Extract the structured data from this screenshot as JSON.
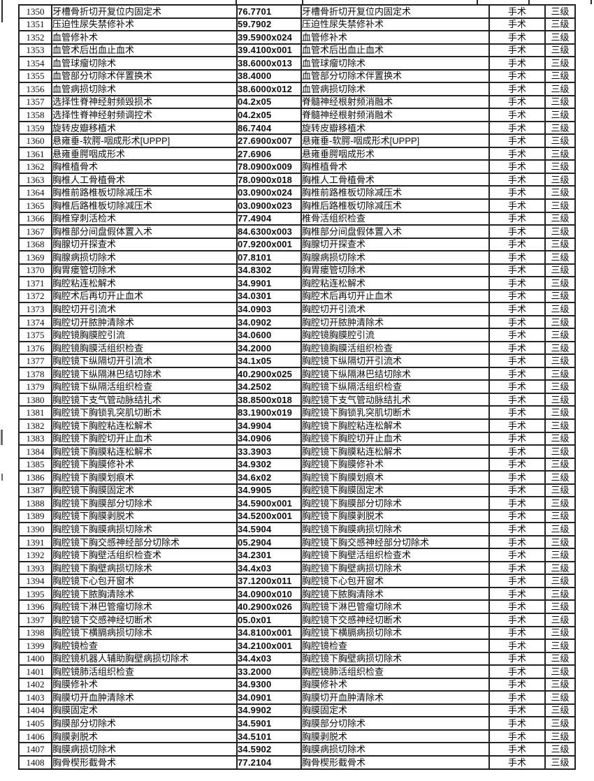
{
  "page": {
    "background": "#ffffff",
    "border_color": "#242424",
    "text_color": "#0c0c0c",
    "category_value": "手术",
    "grade_value": "三级"
  },
  "table": {
    "first_row_number": "1350",
    "last_row_number": "1408",
    "rows": [
      [
        "1350",
        "牙槽骨折切开复位内固定术",
        "76.7701",
        "牙槽骨折切开复位内固定术",
        "手术",
        "三级"
      ],
      [
        "1351",
        "压迫性尿失禁修补术",
        "59.7902",
        "压迫性尿失禁修补术",
        "手术",
        "三级"
      ],
      [
        "1352",
        "血管修补术",
        "39.5900x024",
        "血管修补术",
        "手术",
        "三级"
      ],
      [
        "1353",
        "血管术后出血止血术",
        "39.4100x001",
        "血管术后出血止血术",
        "手术",
        "三级"
      ],
      [
        "1354",
        "血管球瘤切除术",
        "38.6000x013",
        "血管球瘤切除术",
        "手术",
        "三级"
      ],
      [
        "1355",
        "血管部分切除术伴置换术",
        "38.4000",
        "血管部分切除术伴置换术",
        "手术",
        "三级"
      ],
      [
        "1356",
        "血管病损切除术",
        "38.6000x012",
        "血管病损切除术",
        "手术",
        "三级"
      ],
      [
        "1357",
        "选择性脊神经射频毁损术",
        "04.2x05",
        "脊髓神经根射频消融术",
        "手术",
        "三级"
      ],
      [
        "1358",
        "选择性脊神经射频调控术",
        "04.2x05",
        "脊髓神经根射频消融术",
        "手术",
        "三级"
      ],
      [
        "1359",
        "旋转皮瓣移植术",
        "86.7404",
        "旋转皮瓣移植术",
        "手术",
        "三级"
      ],
      [
        "1360",
        "悬雍垂-软腭-咽成形术[UPPP]",
        "27.6900x007",
        "悬雍垂-软腭-咽成形术[UPPP]",
        "手术",
        "三级"
      ],
      [
        "1361",
        "悬雍垂腭咽成形术",
        "27.6906",
        "悬雍垂腭咽成形术",
        "手术",
        "三级"
      ],
      [
        "1362",
        "胸椎植骨术",
        "78.0900x009",
        "胸椎植骨术",
        "手术",
        "三级"
      ],
      [
        "1363",
        "胸椎人工骨植骨术",
        "78.0900x018",
        "胸椎人工骨植骨术",
        "手术",
        "三级"
      ],
      [
        "1364",
        "胸椎前路椎板切除减压术",
        "03.0900x024",
        "胸椎前路椎板切除减压术",
        "手术",
        "三级"
      ],
      [
        "1365",
        "胸椎后路椎板切除减压术",
        "03.0900x023",
        "胸椎后路椎板切除减压术",
        "手术",
        "三级"
      ],
      [
        "1366",
        "胸椎穿刺活检术",
        "77.4904",
        "椎骨活组织检查",
        "手术",
        "三级"
      ],
      [
        "1367",
        "胸椎部分间盘假体置入术",
        "84.6300x003",
        "胸椎部分间盘假体置入术",
        "手术",
        "三级"
      ],
      [
        "1368",
        "胸腺切开探查术",
        "07.9200x001",
        "胸腺切开探查术",
        "手术",
        "三级"
      ],
      [
        "1369",
        "胸腺病损切除术",
        "07.8101",
        "胸腺病损切除术",
        "手术",
        "三级"
      ],
      [
        "1370",
        "胸胃瘘管切除术",
        "34.8302",
        "胸胃瘘管切除术",
        "手术",
        "三级"
      ],
      [
        "1371",
        "胸腔粘连松解术",
        "34.9901",
        "胸腔粘连松解术",
        "手术",
        "三级"
      ],
      [
        "1372",
        "胸腔术后再切开止血术",
        "34.0301",
        "胸腔术后再切开止血术",
        "手术",
        "三级"
      ],
      [
        "1373",
        "胸腔切开引流术",
        "34.0903",
        "胸腔切开引流术",
        "手术",
        "三级"
      ],
      [
        "1374",
        "胸腔切开脓肿清除术",
        "34.0902",
        "胸腔切开脓肿清除术",
        "手术",
        "三级"
      ],
      [
        "1375",
        "胸腔镜胸膜腔引流",
        "34.0600",
        "胸腔镜胸膜腔引流",
        "手术",
        "三级"
      ],
      [
        "1376",
        "胸腔镜胸膜活组织检查",
        "34.2000",
        "胸腔镜胸膜活组织检查",
        "手术",
        "三级"
      ],
      [
        "1377",
        "胸腔镜下纵隔切开引流术",
        "34.1x05",
        "胸腔镜下纵隔切开引流术",
        "手术",
        "三级"
      ],
      [
        "1378",
        "胸腔镜下纵隔淋巴结切除术",
        "40.2900x025",
        "胸腔镜下纵隔淋巴结切除术",
        "手术",
        "三级"
      ],
      [
        "1379",
        "胸腔镜下纵隔活组织检查",
        "34.2502",
        "胸腔镜下纵隔活组织检查",
        "手术",
        "三级"
      ],
      [
        "1380",
        "胸腔镜下支气管动脉结扎术",
        "38.8500x018",
        "胸腔镜下支气管动脉结扎术",
        "手术",
        "三级"
      ],
      [
        "1381",
        "胸腔镜下胸锁乳突肌切断术",
        "83.1900x019",
        "胸腔镜下胸锁乳突肌切断术",
        "手术",
        "三级"
      ],
      [
        "1382",
        "胸腔镜下胸腔粘连松解术",
        "34.9904",
        "胸腔镜下胸腔粘连松解术",
        "手术",
        "三级"
      ],
      [
        "1383",
        "胸腔镜下胸腔切开止血术",
        "34.0906",
        "胸腔镜下胸腔切开止血术",
        "手术",
        "三级"
      ],
      [
        "1384",
        "胸腔镜下胸膜粘连松解术",
        "33.3903",
        "胸腔镜下胸膜粘连松解术",
        "手术",
        "三级"
      ],
      [
        "1385",
        "胸腔镜下胸膜修补术",
        "34.9302",
        "胸腔镜下胸膜修补术",
        "手术",
        "三级"
      ],
      [
        "1386",
        "胸腔镜下胸膜划痕术",
        "34.6x02",
        "胸腔镜下胸膜划痕术",
        "手术",
        "三级"
      ],
      [
        "1387",
        "胸腔镜下胸膜固定术",
        "34.9905",
        "胸腔镜下胸膜固定术",
        "手术",
        "三级"
      ],
      [
        "1388",
        "胸腔镜下胸膜部分切除术",
        "34.5900x001",
        "胸腔镜下胸膜部分切除术",
        "手术",
        "三级"
      ],
      [
        "1389",
        "胸腔镜下胸膜剥脱术",
        "34.5200x001",
        "胸腔镜下胸膜剥脱术",
        "手术",
        "三级"
      ],
      [
        "1390",
        "胸腔镜下胸膜病损切除术",
        "34.5904",
        "胸腔镜下胸膜病损切除术",
        "手术",
        "三级"
      ],
      [
        "1391",
        "胸腔镜下胸交感神经部分切除术",
        "05.2904",
        "胸腔镜下胸交感神经部分切除术",
        "手术",
        "三级"
      ],
      [
        "1392",
        "胸腔镜下胸壁活组织检查术",
        "34.2301",
        "胸腔镜下胸壁活组织检查术",
        "手术",
        "三级"
      ],
      [
        "1393",
        "胸腔镜下胸壁病损切除术",
        "34.4x03",
        "胸腔镜下胸壁病损切除术",
        "手术",
        "三级"
      ],
      [
        "1394",
        "胸腔镜下心包开窗术",
        "37.1200x011",
        "胸腔镜下心包开窗术",
        "手术",
        "三级"
      ],
      [
        "1395",
        "胸腔镜下脓胸清除术",
        "34.0900x010",
        "胸腔镜下脓胸清除术",
        "手术",
        "三级"
      ],
      [
        "1396",
        "胸腔镜下淋巴管瘤切除术",
        "40.2900x026",
        "胸腔镜下淋巴管瘤切除术",
        "手术",
        "三级"
      ],
      [
        "1397",
        "胸腔镜下交感神经切断术",
        "05.0x01",
        "胸腔镜下交感神经切断术",
        "手术",
        "三级"
      ],
      [
        "1398",
        "胸腔镜下横膈病损切除术",
        "34.8100x001",
        "胸腔镜下横膈病损切除术",
        "手术",
        "三级"
      ],
      [
        "1399",
        "胸腔镜检查",
        "34.2100x001",
        "胸腔镜检查",
        "手术",
        "三级"
      ],
      [
        "1400",
        "胸腔镜机器人辅助胸壁病损切除术",
        "34.4x03",
        "胸腔镜下胸壁病损切除术",
        "手术",
        "三级"
      ],
      [
        "1401",
        "胸腔镜肺活组织检查",
        "33.2000",
        "胸腔镜肺活组织检查",
        "手术",
        "三级"
      ],
      [
        "1402",
        "胸膜修补术",
        "34.9300",
        "胸膜修补术",
        "手术",
        "三级"
      ],
      [
        "1403",
        "胸膜切开血肿清除术",
        "34.0901",
        "胸膜切开血肿清除术",
        "手术",
        "三级"
      ],
      [
        "1404",
        "胸膜固定术",
        "34.9902",
        "胸膜固定术",
        "手术",
        "三级"
      ],
      [
        "1405",
        "胸膜部分切除术",
        "34.5901",
        "胸膜部分切除术",
        "手术",
        "三级"
      ],
      [
        "1406",
        "胸膜剥脱术",
        "34.5101",
        "胸膜剥脱术",
        "手术",
        "三级"
      ],
      [
        "1407",
        "胸膜病损切除术",
        "34.5902",
        "胸膜病损切除术",
        "手术",
        "三级"
      ],
      [
        "1408",
        "胸骨楔形截骨术",
        "77.2104",
        "胸骨楔形截骨术",
        "手术",
        "三级"
      ]
    ]
  }
}
